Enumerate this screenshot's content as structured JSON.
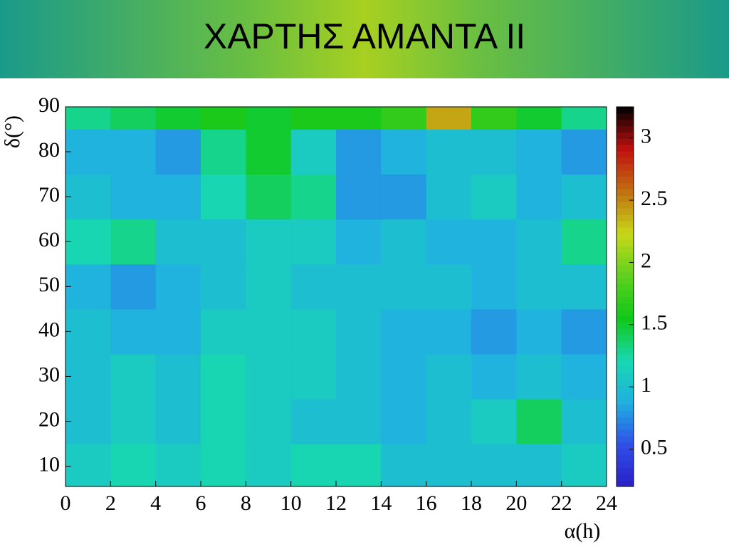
{
  "header": {
    "title": "ΧΑΡΤΗΣ ΑΜΑΝΤΑ ΙΙ"
  },
  "chart_data": {
    "type": "heatmap",
    "x_label": "α(h)",
    "y_label": "δ(°)",
    "xbins": [
      0,
      2,
      4,
      6,
      8,
      10,
      12,
      14,
      16,
      18,
      20,
      22,
      24
    ],
    "ybins": [
      5.5,
      15,
      25,
      35,
      45,
      55,
      65,
      75,
      85,
      90
    ],
    "z": [
      [
        1.1,
        1.2,
        1.1,
        1.2,
        1.1,
        1.2,
        1.2,
        1.0,
        1.0,
        1.0,
        1.0,
        1.1
      ],
      [
        1.0,
        1.1,
        1.0,
        1.2,
        1.1,
        1.0,
        1.0,
        0.9,
        1.0,
        1.1,
        1.4,
        1.0
      ],
      [
        1.0,
        1.1,
        1.0,
        1.2,
        1.1,
        1.1,
        1.0,
        0.9,
        1.0,
        0.9,
        1.0,
        0.9
      ],
      [
        1.0,
        0.9,
        0.9,
        1.1,
        1.1,
        1.1,
        1.0,
        0.9,
        0.9,
        0.8,
        0.9,
        0.8
      ],
      [
        0.9,
        0.8,
        0.9,
        1.0,
        1.1,
        1.0,
        1.0,
        1.0,
        1.0,
        0.9,
        1.0,
        1.0
      ],
      [
        1.2,
        1.3,
        1.0,
        1.0,
        1.1,
        1.1,
        0.9,
        1.0,
        0.9,
        0.9,
        1.0,
        1.3
      ],
      [
        1.0,
        0.9,
        0.9,
        1.2,
        1.4,
        1.3,
        0.8,
        0.8,
        1.0,
        1.1,
        0.9,
        1.0
      ],
      [
        0.9,
        0.9,
        0.8,
        1.3,
        1.5,
        1.1,
        0.8,
        0.9,
        1.0,
        1.0,
        0.9,
        0.8
      ],
      [
        1.3,
        1.4,
        1.5,
        1.6,
        1.5,
        1.6,
        1.6,
        1.7,
        2.4,
        1.7,
        1.5,
        1.3
      ]
    ],
    "xlim": [
      0,
      24
    ],
    "ylim": [
      5.5,
      90
    ],
    "zlim": [
      0.2,
      3.25
    ],
    "xticks": [
      0,
      2,
      4,
      6,
      8,
      10,
      12,
      14,
      16,
      18,
      20,
      22,
      24
    ],
    "yticks": [
      10,
      20,
      30,
      40,
      50,
      60,
      70,
      80,
      90
    ],
    "zticks": [
      0.5,
      1,
      1.5,
      2,
      2.5,
      3
    ],
    "colors": [
      "#2a1fc8",
      "#2f50e8",
      "#20b0e0",
      "#18d8b0",
      "#10c818",
      "#60d020",
      "#c8d818",
      "#c07010",
      "#c01010",
      "#000000"
    ]
  }
}
